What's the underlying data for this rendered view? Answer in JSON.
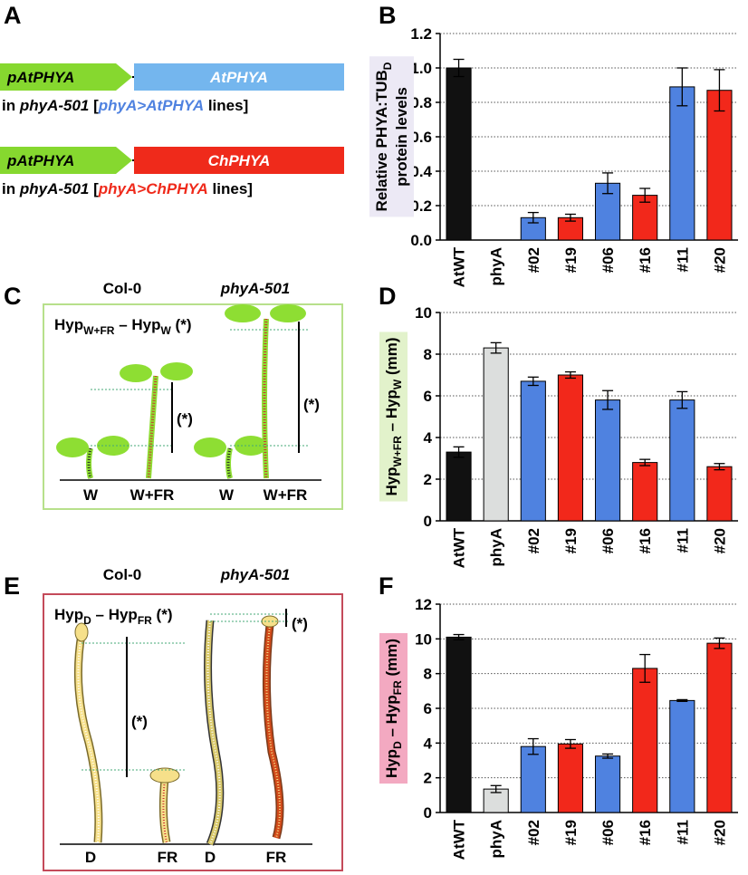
{
  "letters": {
    "a": "A",
    "b": "B",
    "c": "C",
    "d": "D",
    "e": "E",
    "f": "F"
  },
  "construct_1": {
    "promoter": "pAtPHYA",
    "gene": "AtPHYA",
    "caption": [
      "in ",
      "phyA-501",
      " [",
      "phyA>AtPHYA",
      " lines]"
    ]
  },
  "construct_2": {
    "promoter": "pAtPHYA",
    "gene": "ChPHYA",
    "caption": [
      "in ",
      "phyA-501",
      " [",
      "phyA>ChPHYA",
      " lines]"
    ]
  },
  "panel_c": {
    "wild_type": "Col-0",
    "mutant": "phyA-501",
    "formula": [
      "Hyp",
      "W+FR",
      " – Hyp",
      "W",
      " (*)"
    ],
    "marker": [
      "(*)",
      "(*)"
    ],
    "conditions": [
      "W",
      "W+FR",
      "W",
      "W+FR"
    ]
  },
  "panel_e": {
    "wild_type": "Col-0",
    "mutant": "phyA-501",
    "formula": [
      "Hyp",
      "D",
      " – Hyp",
      "FR",
      " (*)"
    ],
    "marker": [
      "(*)",
      "(*)"
    ],
    "conditions": [
      "D",
      "FR",
      "D",
      "FR"
    ]
  },
  "chart_data": [
    {
      "type": "bar",
      "ylabel": [
        [
          {
            "text": "Relative PHYA:TUB"
          },
          {
            "text": "D",
            "sub": true
          }
        ],
        [
          {
            "text": "protein levels"
          }
        ]
      ],
      "label_bg": "#ece9f5",
      "categories": [
        "AtWT",
        "phyA",
        "#02",
        "#19",
        "#06",
        "#16",
        "#11",
        "#20"
      ],
      "values": [
        1.0,
        0,
        0.13,
        0.13,
        0.33,
        0.26,
        0.89,
        0.87
      ],
      "errors": [
        0.05,
        null,
        0.03,
        0.02,
        0.06,
        0.04,
        0.11,
        0.12
      ],
      "colors": [
        "#111111",
        "#dcdedd",
        "#4f82e0",
        "#f2281b",
        "#4f82e0",
        "#f2281b",
        "#4f82e0",
        "#f2281b"
      ],
      "ylim": [
        0,
        1.2
      ],
      "yticks": [
        {
          "value": 0,
          "label": "0.0"
        },
        0.2,
        0.4,
        0.6,
        0.8,
        {
          "value": 1,
          "label": "1.0"
        },
        1.2
      ],
      "grid": true
    },
    {
      "type": "bar",
      "ylabel": [
        [
          {
            "text": "Hyp"
          },
          {
            "text": "W+FR",
            "sub": true
          },
          {
            "text": " – Hyp"
          },
          {
            "text": "W",
            "sub": true
          },
          {
            "text": " (mm)"
          }
        ]
      ],
      "label_bg": "#e2f2cb",
      "categories": [
        "AtWT",
        "phyA",
        "#02",
        "#19",
        "#06",
        "#16",
        "#11",
        "#20"
      ],
      "values": [
        3.3,
        8.3,
        6.7,
        7.0,
        5.8,
        2.8,
        5.8,
        2.6
      ],
      "errors": [
        0.25,
        0.25,
        0.2,
        0.15,
        0.45,
        0.15,
        0.4,
        0.15
      ],
      "colors": [
        "#111111",
        "#dcdedd",
        "#4f82e0",
        "#f2281b",
        "#4f82e0",
        "#f2281b",
        "#4f82e0",
        "#f2281b"
      ],
      "ylim": [
        0,
        10
      ],
      "yticks": [
        0,
        2,
        4,
        6,
        8,
        10
      ],
      "grid": true
    },
    {
      "type": "bar",
      "ylabel": [
        [
          {
            "text": "Hyp"
          },
          {
            "text": "D",
            "sub": true
          },
          {
            "text": " – Hyp"
          },
          {
            "text": "FR",
            "sub": true
          },
          {
            "text": " (mm)"
          }
        ]
      ],
      "label_bg": "#f3a9c1",
      "categories": [
        "AtWT",
        "phyA",
        "#02",
        "#19",
        "#06",
        "#16",
        "#11",
        "#20"
      ],
      "values": [
        10.1,
        1.35,
        3.8,
        3.95,
        3.25,
        8.3,
        6.45,
        9.75
      ],
      "errors": [
        0.15,
        0.2,
        0.45,
        0.25,
        0.12,
        0.8,
        0.05,
        0.3
      ],
      "colors": [
        "#111111",
        "#dcdedd",
        "#4f82e0",
        "#f2281b",
        "#4f82e0",
        "#f2281b",
        "#4f82e0",
        "#f2281b"
      ],
      "ylim": [
        0,
        12
      ],
      "yticks": [
        0,
        2,
        4,
        6,
        8,
        10,
        12
      ],
      "grid": true
    }
  ]
}
